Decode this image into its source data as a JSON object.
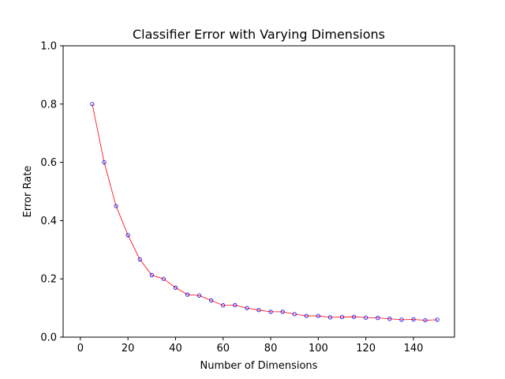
{
  "chart_data": {
    "type": "line",
    "title": "Classifier Error with Varying Dimensions",
    "xlabel": "Number of Dimensions",
    "ylabel": "Error Rate",
    "xlim": [
      0,
      150
    ],
    "ylim": [
      0.0,
      1.0
    ],
    "x_ticks": [
      0,
      20,
      40,
      60,
      80,
      100,
      120,
      140
    ],
    "x_tick_labels": [
      "0",
      "20",
      "40",
      "60",
      "80",
      "100",
      "120",
      "140"
    ],
    "y_ticks": [
      0.0,
      0.2,
      0.4,
      0.6,
      0.8,
      1.0
    ],
    "y_tick_labels": [
      "0.0",
      "0.2",
      "0.4",
      "0.6",
      "0.8",
      "1.0"
    ],
    "grid": false,
    "series": [
      {
        "line_color": "#ff0000",
        "marker_edge_color": "#0000ff",
        "x": [
          5,
          10,
          15,
          20,
          25,
          30,
          35,
          40,
          45,
          50,
          55,
          60,
          65,
          70,
          75,
          80,
          85,
          90,
          95,
          100,
          105,
          110,
          115,
          120,
          125,
          130,
          135,
          140,
          145,
          150
        ],
        "y": [
          0.8,
          0.6,
          0.45,
          0.35,
          0.267,
          0.213,
          0.2,
          0.17,
          0.146,
          0.143,
          0.126,
          0.109,
          0.11,
          0.1,
          0.093,
          0.087,
          0.087,
          0.079,
          0.073,
          0.073,
          0.068,
          0.069,
          0.07,
          0.067,
          0.066,
          0.063,
          0.06,
          0.061,
          0.058,
          0.06
        ]
      }
    ]
  }
}
